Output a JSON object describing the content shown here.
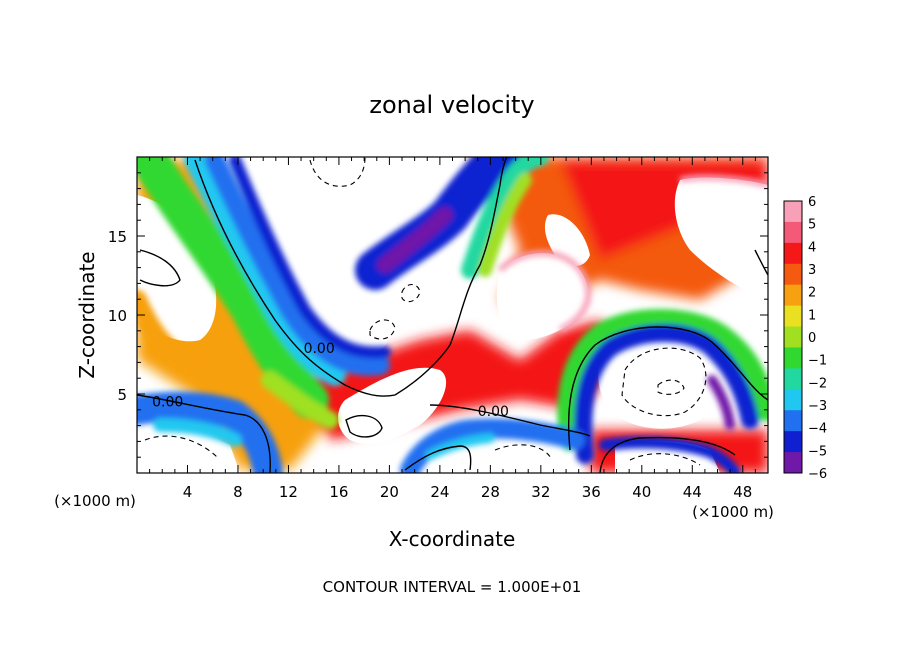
{
  "chart_data": {
    "type": "heatmap",
    "title": "zonal velocity",
    "xlabel": "X-coordinate",
    "ylabel": "Z-coordinate",
    "x_unit_left": "(×1000 m)",
    "x_unit_right": "(×1000 m)",
    "footer": "CONTOUR INTERVAL = 1.000E+01",
    "xlim": [
      0,
      50
    ],
    "ylim": [
      0,
      20
    ],
    "x_ticks": [
      4,
      8,
      12,
      16,
      20,
      24,
      28,
      32,
      36,
      40,
      44,
      48
    ],
    "y_ticks": [
      5,
      10,
      15
    ],
    "colorbar": {
      "levels": [
        6,
        5,
        4,
        3,
        2,
        1,
        0,
        -1,
        -2,
        -3,
        -4,
        -5,
        -6
      ],
      "colors": [
        "#f7a0b8",
        "#f45a78",
        "#f41818",
        "#f45a10",
        "#f7a010",
        "#e8e020",
        "#a0e020",
        "#30d830",
        "#20d8a0",
        "#20c8f0",
        "#2070f0",
        "#1020d0",
        "#7018a8"
      ]
    },
    "contour_labels": [
      {
        "text": "0.00",
        "x": 13.2,
        "y": 7.6
      },
      {
        "text": "0.00",
        "x": 1.2,
        "y": 4.2
      },
      {
        "text": "0.00",
        "x": 27.0,
        "y": 3.6
      }
    ],
    "features": [
      {
        "name": "band-12",
        "x": [
          1.5,
          11,
          16.5,
          24
        ],
        "y": [
          18,
          11,
          7.5,
          4.2
        ]
      },
      {
        "name": "upper-left-blue",
        "x": [
          5,
          8,
          12,
          16,
          19
        ],
        "y": [
          19.5,
          16,
          12,
          8.5,
          7.5
        ]
      },
      {
        "name": "upper-jet-blue",
        "x": [
          21,
          24,
          27,
          29
        ],
        "y": [
          12.5,
          16,
          19,
          19.8
        ]
      },
      {
        "name": "lower-left-blue",
        "x": [
          0,
          4,
          8,
          11
        ],
        "y": [
          4,
          3.5,
          2.5,
          0.5
        ]
      },
      {
        "name": "right-loop",
        "x": [
          35,
          40,
          45,
          48
        ],
        "y": [
          5,
          8,
          8.5,
          5
        ]
      }
    ]
  }
}
